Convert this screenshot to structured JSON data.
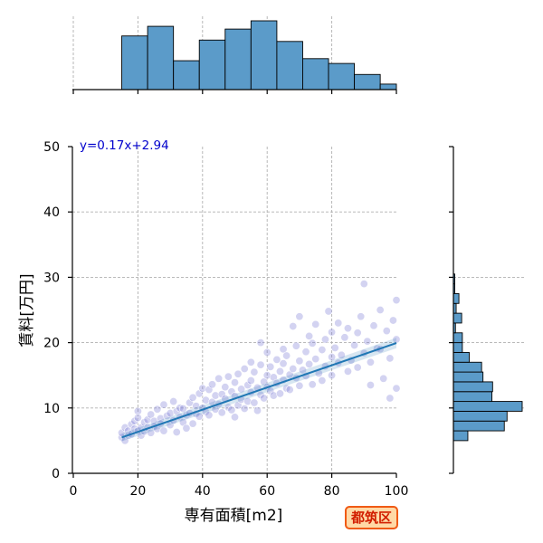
{
  "chart_data": {
    "type": "scatter",
    "xlabel": "専有面積[m2]",
    "ylabel": "賃料[万円]",
    "xlim": [
      0,
      100
    ],
    "ylim": [
      0,
      50
    ],
    "xticks": [
      "0",
      "20",
      "40",
      "60",
      "80",
      "100"
    ],
    "yticks": [
      "0",
      "10",
      "20",
      "30",
      "40",
      "50"
    ],
    "grid": true,
    "regression": {
      "equation": "y=0.17x+2.94",
      "slope": 0.17,
      "intercept": 2.94,
      "x_range": [
        15,
        100
      ]
    },
    "marginal_x_hist": {
      "bin_edges": [
        0,
        15,
        23,
        31,
        39,
        47,
        55,
        63,
        71,
        79,
        87,
        95,
        100
      ],
      "relative_heights": [
        0,
        0.78,
        0.92,
        0.42,
        0.72,
        0.88,
        1.0,
        0.7,
        0.45,
        0.38,
        0.22,
        0.08
      ]
    },
    "marginal_y_hist": {
      "bin_edges": [
        5,
        6.5,
        8,
        9.5,
        11,
        12.5,
        14,
        15.5,
        17,
        18.5,
        20,
        21.5,
        23,
        24.5,
        26,
        27.5,
        29,
        30.5
      ],
      "relative_widths": [
        0.21,
        0.74,
        0.78,
        1.0,
        0.56,
        0.57,
        0.43,
        0.41,
        0.23,
        0.13,
        0.13,
        0.03,
        0.12,
        0.04,
        0.08,
        0.02,
        0.02
      ]
    },
    "points": [
      [
        15,
        5.5
      ],
      [
        15,
        6.2
      ],
      [
        16,
        5.0
      ],
      [
        16,
        7.0
      ],
      [
        17,
        6.5
      ],
      [
        17,
        5.8
      ],
      [
        18,
        6.0
      ],
      [
        18,
        7.5
      ],
      [
        19,
        6.8
      ],
      [
        19,
        8.0
      ],
      [
        20,
        6.5
      ],
      [
        20,
        9.5
      ],
      [
        20,
        8.5
      ],
      [
        21,
        7.0
      ],
      [
        21,
        5.8
      ],
      [
        22,
        7.8
      ],
      [
        22,
        6.4
      ],
      [
        23,
        8.2
      ],
      [
        23,
        7.0
      ],
      [
        24,
        6.2
      ],
      [
        24,
        9.0
      ],
      [
        25,
        8.0
      ],
      [
        25,
        7.2
      ],
      [
        26,
        9.8
      ],
      [
        26,
        6.8
      ],
      [
        27,
        8.4
      ],
      [
        27,
        7.6
      ],
      [
        28,
        10.5
      ],
      [
        28,
        6.5
      ],
      [
        29,
        8.8
      ],
      [
        30,
        9.2
      ],
      [
        30,
        7.4
      ],
      [
        31,
        8.1
      ],
      [
        31,
        11.0
      ],
      [
        32,
        9.5
      ],
      [
        32,
        6.3
      ],
      [
        33,
        10.0
      ],
      [
        33,
        8.6
      ],
      [
        34,
        7.8
      ],
      [
        34,
        9.9
      ],
      [
        35,
        8.9
      ],
      [
        35,
        6.9
      ],
      [
        36,
        10.8
      ],
      [
        36,
        9.2
      ],
      [
        37,
        7.6
      ],
      [
        37,
        11.6
      ],
      [
        38,
        10.3
      ],
      [
        38,
        9.1
      ],
      [
        39,
        12.2
      ],
      [
        39,
        8.7
      ],
      [
        40,
        10.0
      ],
      [
        40,
        13.0
      ],
      [
        41,
        9.4
      ],
      [
        41,
        11.2
      ],
      [
        42,
        12.8
      ],
      [
        42,
        8.9
      ],
      [
        43,
        10.9
      ],
      [
        43,
        13.6
      ],
      [
        44,
        9.8
      ],
      [
        44,
        11.9
      ],
      [
        45,
        14.5
      ],
      [
        45,
        10.6
      ],
      [
        46,
        12.1
      ],
      [
        46,
        9.3
      ],
      [
        47,
        13.2
      ],
      [
        47,
        11.4
      ],
      [
        48,
        10.1
      ],
      [
        48,
        14.8
      ],
      [
        49,
        12.5
      ],
      [
        49,
        9.7
      ],
      [
        50,
        11.8
      ],
      [
        50,
        13.9
      ],
      [
        50,
        8.6
      ],
      [
        51,
        15.2
      ],
      [
        51,
        10.4
      ],
      [
        52,
        12.9
      ],
      [
        52,
        11.3
      ],
      [
        53,
        16.0
      ],
      [
        53,
        9.9
      ],
      [
        54,
        13.5
      ],
      [
        54,
        11.0
      ],
      [
        55,
        14.2
      ],
      [
        55,
        12.4
      ],
      [
        55,
        17.0
      ],
      [
        56,
        10.8
      ],
      [
        56,
        15.5
      ],
      [
        57,
        13.1
      ],
      [
        57,
        9.6
      ],
      [
        58,
        16.6
      ],
      [
        58,
        12.0
      ],
      [
        58,
        20.0
      ],
      [
        59,
        14.0
      ],
      [
        59,
        11.5
      ],
      [
        60,
        15.0
      ],
      [
        60,
        13.2
      ],
      [
        60,
        18.5
      ],
      [
        61,
        12.6
      ],
      [
        61,
        16.3
      ],
      [
        62,
        14.7
      ],
      [
        62,
        11.9
      ],
      [
        63,
        17.4
      ],
      [
        63,
        13.8
      ],
      [
        64,
        15.6
      ],
      [
        64,
        12.2
      ],
      [
        65,
        19.0
      ],
      [
        65,
        14.3
      ],
      [
        65,
        16.8
      ],
      [
        66,
        13.0
      ],
      [
        66,
        18.0
      ],
      [
        67,
        15.1
      ],
      [
        67,
        12.8
      ],
      [
        68,
        22.5
      ],
      [
        68,
        16.0
      ],
      [
        69,
        14.6
      ],
      [
        69,
        19.5
      ],
      [
        70,
        17.2
      ],
      [
        70,
        13.4
      ],
      [
        70,
        24.0
      ],
      [
        71,
        15.8
      ],
      [
        72,
        18.6
      ],
      [
        72,
        14.9
      ],
      [
        73,
        21.0
      ],
      [
        73,
        16.7
      ],
      [
        74,
        13.6
      ],
      [
        74,
        19.9
      ],
      [
        75,
        17.5
      ],
      [
        75,
        22.8
      ],
      [
        76,
        15.3
      ],
      [
        77,
        18.9
      ],
      [
        77,
        14.2
      ],
      [
        78,
        20.5
      ],
      [
        78,
        16.4
      ],
      [
        79,
        24.8
      ],
      [
        80,
        17.8
      ],
      [
        80,
        21.6
      ],
      [
        80,
        15.0
      ],
      [
        81,
        19.2
      ],
      [
        82,
        23.0
      ],
      [
        82,
        16.9
      ],
      [
        83,
        18.1
      ],
      [
        84,
        20.8
      ],
      [
        85,
        15.6
      ],
      [
        85,
        22.2
      ],
      [
        86,
        17.3
      ],
      [
        87,
        19.6
      ],
      [
        88,
        21.5
      ],
      [
        88,
        16.2
      ],
      [
        89,
        24.0
      ],
      [
        90,
        18.4
      ],
      [
        90,
        29.0
      ],
      [
        91,
        20.2
      ],
      [
        92,
        17.0
      ],
      [
        93,
        22.6
      ],
      [
        94,
        19.1
      ],
      [
        95,
        25.0
      ],
      [
        95,
        19.0
      ],
      [
        96,
        14.5
      ],
      [
        97,
        21.8
      ],
      [
        98,
        17.6
      ],
      [
        99,
        23.4
      ],
      [
        100,
        13.0
      ],
      [
        100,
        26.5
      ],
      [
        100,
        20.5
      ],
      [
        98,
        11.5
      ],
      [
        92,
        13.5
      ]
    ]
  },
  "badge": {
    "text": "都筑区"
  }
}
